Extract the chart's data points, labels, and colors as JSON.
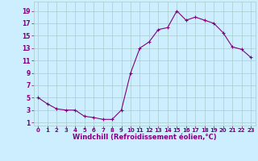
{
  "x": [
    0,
    1,
    2,
    3,
    4,
    5,
    6,
    7,
    8,
    9,
    10,
    11,
    12,
    13,
    14,
    15,
    16,
    17,
    18,
    19,
    20,
    21,
    22,
    23
  ],
  "y": [
    5,
    4,
    3.2,
    3,
    3,
    2,
    1.8,
    1.5,
    1.5,
    3,
    9,
    13,
    14,
    16,
    16.3,
    19,
    17.5,
    18,
    17.5,
    17,
    15.5,
    13.2,
    12.8,
    11.5
  ],
  "line_color": "#800080",
  "marker": "+",
  "background_color": "#cceeff",
  "grid_color": "#aacccc",
  "xlabel": "Windchill (Refroidissement éolien,°C)",
  "xlabel_color": "#800080",
  "xlabel_fontsize": 6.0,
  "ytick_labels": [
    "1",
    "3",
    "5",
    "7",
    "9",
    "11",
    "13",
    "15",
    "17",
    "19"
  ],
  "yticks": [
    1,
    3,
    5,
    7,
    9,
    11,
    13,
    15,
    17,
    19
  ],
  "xticks": [
    0,
    1,
    2,
    3,
    4,
    5,
    6,
    7,
    8,
    9,
    10,
    11,
    12,
    13,
    14,
    15,
    16,
    17,
    18,
    19,
    20,
    21,
    22,
    23
  ],
  "xtick_labels": [
    "0",
    "1",
    "2",
    "3",
    "4",
    "5",
    "6",
    "7",
    "8",
    "9",
    "10",
    "11",
    "12",
    "13",
    "14",
    "15",
    "16",
    "17",
    "18",
    "19",
    "20",
    "21",
    "22",
    "23"
  ],
  "ylim": [
    0.5,
    20.5
  ],
  "xlim": [
    -0.5,
    23.5
  ]
}
